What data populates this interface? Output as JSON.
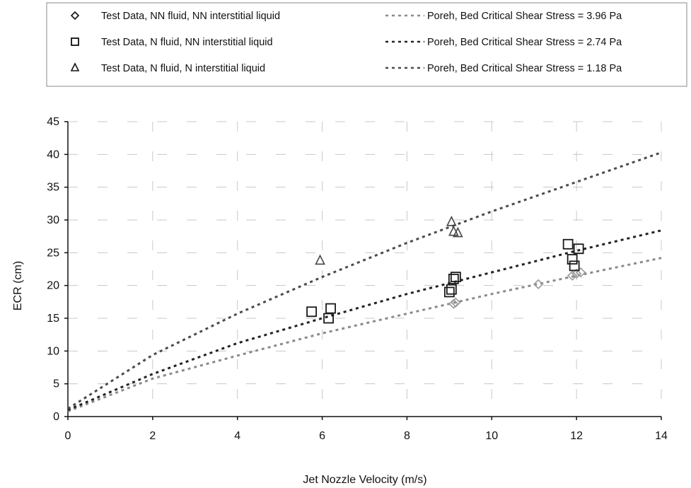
{
  "chart_data": {
    "type": "scatter",
    "xlabel": "Jet Nozzle Velocity (m/s)",
    "ylabel": "ECR (cm)",
    "xlim": [
      0,
      14
    ],
    "ylim": [
      0,
      45
    ],
    "xticks": [
      0,
      2,
      4,
      6,
      8,
      10,
      12,
      14
    ],
    "yticks": [
      0,
      5,
      10,
      15,
      20,
      25,
      30,
      35,
      40,
      45
    ],
    "grid": true,
    "legend_position": "top",
    "series": [
      {
        "name": "Test Data, NN fluid, NN interstitial liquid",
        "kind": "points",
        "marker": "diamond",
        "color": "#9a9a9a",
        "points": [
          [
            9.1,
            17.2
          ],
          [
            9.15,
            17.4
          ],
          [
            11.1,
            20.2
          ],
          [
            11.9,
            21.5
          ],
          [
            12.0,
            21.8
          ],
          [
            12.1,
            22.0
          ]
        ]
      },
      {
        "name": "Test Data, N fluid, NN interstitial liquid",
        "kind": "points",
        "marker": "square",
        "color": "#1a1a1a",
        "points": [
          [
            5.75,
            16.0
          ],
          [
            6.15,
            15.0
          ],
          [
            6.2,
            16.5
          ],
          [
            9.0,
            19.0
          ],
          [
            9.05,
            19.4
          ],
          [
            9.1,
            21.0
          ],
          [
            9.15,
            21.3
          ],
          [
            11.8,
            26.3
          ],
          [
            11.9,
            24.0
          ],
          [
            11.95,
            23.0
          ],
          [
            12.05,
            25.6
          ]
        ]
      },
      {
        "name": "Test Data, N fluid, N interstitial liquid",
        "kind": "points",
        "marker": "triangle",
        "color": "#444444",
        "points": [
          [
            5.95,
            23.8
          ],
          [
            9.05,
            29.7
          ],
          [
            9.1,
            28.2
          ],
          [
            9.2,
            28.0
          ]
        ]
      },
      {
        "name": "Poreh, Bed Critical Shear Stress = 3.96 Pa",
        "kind": "line",
        "dash": "dotted",
        "color": "#8a8a8a",
        "points": [
          [
            0,
            0.8
          ],
          [
            2,
            5.8
          ],
          [
            4,
            9.3
          ],
          [
            6,
            12.7
          ],
          [
            8,
            15.7
          ],
          [
            10,
            18.7
          ],
          [
            12,
            21.5
          ],
          [
            14,
            24.2
          ]
        ]
      },
      {
        "name": "Poreh, Bed Critical Shear Stress = 2.74 Pa",
        "kind": "line",
        "dash": "dotted",
        "color": "#222222",
        "points": [
          [
            0,
            1.0
          ],
          [
            2,
            6.5
          ],
          [
            4,
            11.2
          ],
          [
            6,
            15.0
          ],
          [
            8,
            18.7
          ],
          [
            10,
            22.0
          ],
          [
            12,
            25.3
          ],
          [
            14,
            28.4
          ]
        ]
      },
      {
        "name": "Poreh, Bed Critical Shear Stress = 1.18 Pa",
        "kind": "line",
        "dash": "dotted",
        "color": "#4a4a4a",
        "points": [
          [
            0,
            1.2
          ],
          [
            2,
            9.4
          ],
          [
            4,
            15.7
          ],
          [
            6,
            21.3
          ],
          [
            8,
            26.5
          ],
          [
            10,
            31.3
          ],
          [
            12,
            35.8
          ],
          [
            14,
            40.3
          ]
        ]
      }
    ]
  }
}
